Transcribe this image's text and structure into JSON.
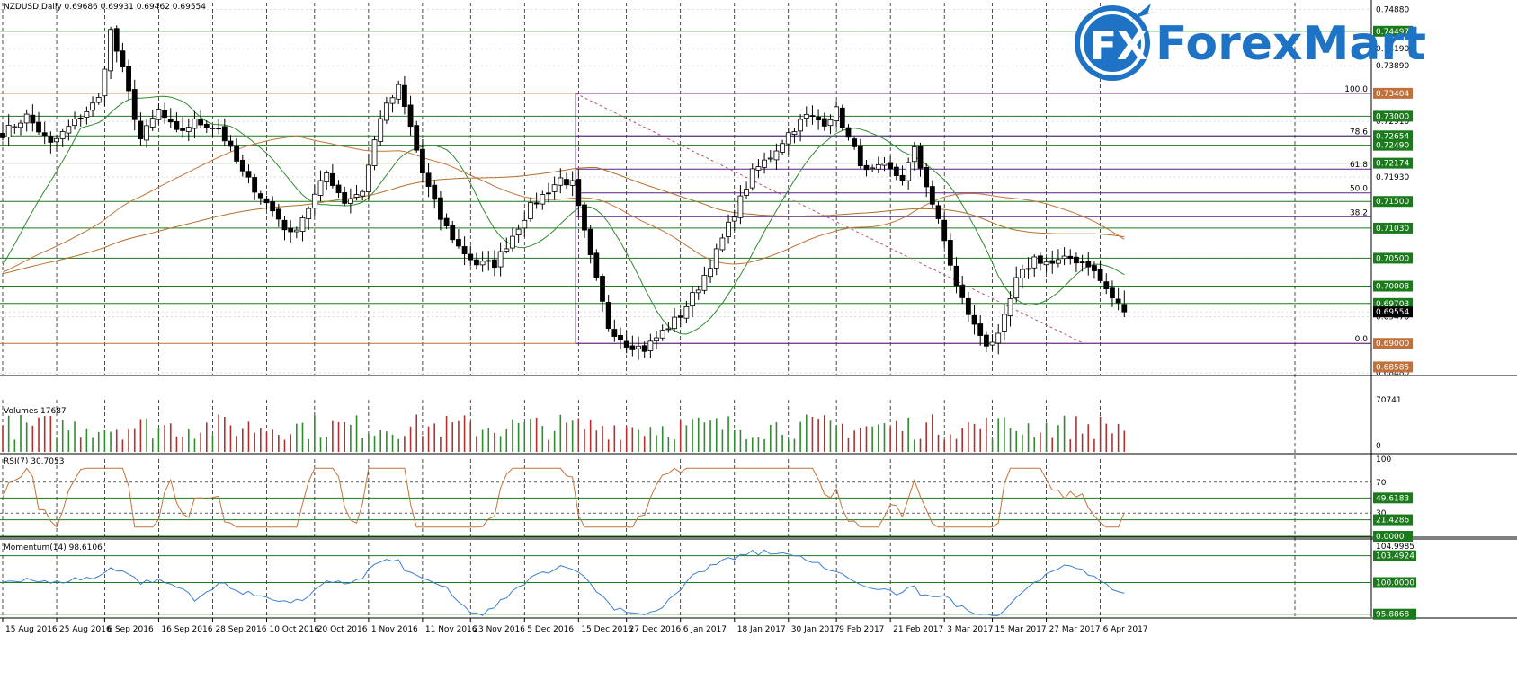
{
  "chart_data": {
    "type": "candlestick",
    "symbol_header": "NZDUSD,Daily  0.69686 0.69931 0.69462 0.69554",
    "brand_name": "ForexMart",
    "brand_logo_text": "FX",
    "price_axis": {
      "range": [
        0.6845,
        0.75
      ],
      "ticks": [
        "0.74880",
        "0.74497",
        "0.74190",
        "0.73890",
        "0.73404",
        "0.73000",
        "0.72910",
        "0.72654",
        "0.72490",
        "0.72174",
        "0.71930",
        "0.71500",
        "0.71030",
        "0.70500",
        "0.70008",
        "0.69703",
        "0.69554",
        "0.69470",
        "0.69000",
        "0.68585",
        "0.68480"
      ],
      "marked_levels": [
        {
          "value": 0.74497,
          "label": "0.74497",
          "color": "#1b7a1b"
        },
        {
          "value": 0.73404,
          "label": "0.73404",
          "color": "#c0703a"
        },
        {
          "value": 0.73,
          "label": "0.73000",
          "color": "#1b7a1b"
        },
        {
          "value": 0.72654,
          "label": "0.72654",
          "color": "#1b7a1b"
        },
        {
          "value": 0.7249,
          "label": "0.72490",
          "color": "#1b7a1b"
        },
        {
          "value": 0.72174,
          "label": "0.72174",
          "color": "#1b7a1b"
        },
        {
          "value": 0.715,
          "label": "0.71500",
          "color": "#1b7a1b"
        },
        {
          "value": 0.7103,
          "label": "0.71030",
          "color": "#1b7a1b"
        },
        {
          "value": 0.705,
          "label": "0.70500",
          "color": "#1b7a1b"
        },
        {
          "value": 0.70008,
          "label": "0.70008",
          "color": "#1b7a1b"
        },
        {
          "value": 0.69703,
          "label": "0.69703",
          "color": "#1b7a1b"
        },
        {
          "value": 0.69554,
          "label": "0.69554",
          "color": "#000000"
        },
        {
          "value": 0.69,
          "label": "0.69000",
          "color": "#c0703a"
        },
        {
          "value": 0.68585,
          "label": "0.68585",
          "color": "#c0703a"
        }
      ]
    },
    "fibonacci": {
      "color": "#5a1e8c",
      "levels": [
        {
          "label": "100.0",
          "value": 0.73404
        },
        {
          "label": "78.6",
          "value": 0.72654
        },
        {
          "label": "61.8",
          "value": 0.7207
        },
        {
          "label": "50.0",
          "value": 0.7165
        },
        {
          "label": "38.2",
          "value": 0.7123
        },
        {
          "label": "0.0",
          "value": 0.69
        }
      ]
    },
    "x_axis_labels": [
      "15 Aug 2016",
      "25 Aug 2016",
      "6 Sep 2016",
      "16 Sep 2016",
      "28 Sep 2016",
      "10 Oct 2016",
      "20 Oct 2016",
      "1 Nov 2016",
      "11 Nov 2016",
      "23 Nov 2016",
      "5 Dec 2016",
      "15 Dec 2016",
      "27 Dec 2016",
      "6 Jan 2017",
      "18 Jan 2017",
      "30 Jan 2017",
      "9 Feb 2017",
      "21 Feb 2017",
      "3 Mar 2017",
      "15 Mar 2017",
      "27 Mar 2017",
      "6 Apr 2017"
    ],
    "close_anchors": [
      [
        0,
        0.727
      ],
      [
        4,
        0.73
      ],
      [
        8,
        0.725
      ],
      [
        12,
        0.729
      ],
      [
        16,
        0.733
      ],
      [
        17,
        0.739
      ],
      [
        18,
        0.745
      ],
      [
        20,
        0.738
      ],
      [
        23,
        0.726
      ],
      [
        26,
        0.731
      ],
      [
        29,
        0.727
      ],
      [
        32,
        0.729
      ],
      [
        36,
        0.728
      ],
      [
        40,
        0.72
      ],
      [
        43,
        0.716
      ],
      [
        46,
        0.712
      ],
      [
        48,
        0.709
      ],
      [
        51,
        0.714
      ],
      [
        54,
        0.72
      ],
      [
        57,
        0.715
      ],
      [
        60,
        0.717
      ],
      [
        63,
        0.73
      ],
      [
        66,
        0.735
      ],
      [
        68,
        0.728
      ],
      [
        70,
        0.72
      ],
      [
        73,
        0.712
      ],
      [
        76,
        0.707
      ],
      [
        79,
        0.704
      ],
      [
        82,
        0.704
      ],
      [
        85,
        0.709
      ],
      [
        88,
        0.714
      ],
      [
        91,
        0.717
      ],
      [
        93,
        0.719
      ],
      [
        95,
        0.718
      ],
      [
        98,
        0.705
      ],
      [
        101,
        0.693
      ],
      [
        104,
        0.69
      ],
      [
        107,
        0.689
      ],
      [
        110,
        0.692
      ],
      [
        113,
        0.695
      ],
      [
        116,
        0.7
      ],
      [
        119,
        0.706
      ],
      [
        122,
        0.713
      ],
      [
        125,
        0.72
      ],
      [
        128,
        0.723
      ],
      [
        131,
        0.727
      ],
      [
        134,
        0.73
      ],
      [
        137,
        0.729
      ],
      [
        139,
        0.731
      ],
      [
        141,
        0.726
      ],
      [
        144,
        0.72
      ],
      [
        147,
        0.721
      ],
      [
        150,
        0.719
      ],
      [
        152,
        0.724
      ],
      [
        154,
        0.718
      ],
      [
        157,
        0.708
      ],
      [
        159,
        0.7
      ],
      [
        162,
        0.693
      ],
      [
        164,
        0.69
      ],
      [
        166,
        0.691
      ],
      [
        169,
        0.701
      ],
      [
        172,
        0.705
      ],
      [
        175,
        0.704
      ],
      [
        178,
        0.705
      ],
      [
        181,
        0.704
      ],
      [
        183,
        0.701
      ],
      [
        185,
        0.698
      ],
      [
        187,
        0.6955
      ]
    ],
    "moving_averages": [
      {
        "period": 14,
        "color": "#2e8b2e"
      },
      {
        "period": 50,
        "color": "#c4743a"
      },
      {
        "period": 100,
        "color": "#b26f2a"
      }
    ],
    "volumes": {
      "label": "Volumes 17687",
      "max_tick": "70741",
      "min_tick": "0"
    },
    "rsi": {
      "label": "RSI(7) 30.7053",
      "range": [
        0,
        100
      ],
      "ticks": [
        "100",
        "70",
        "30",
        "0"
      ],
      "current": 30.7053,
      "levels": [
        {
          "value": 49.6183,
          "label": "49.6183",
          "color": "#1b7a1b"
        },
        {
          "value": 21.4286,
          "label": "21.4286",
          "color": "#1b7a1b"
        },
        {
          "value": 0,
          "label": "0.0000",
          "color": "#1b7a1b"
        }
      ],
      "line_color": "#c4743a"
    },
    "momentum": {
      "label": "Momentum(14) 98.6106",
      "range": [
        95.5,
        105.2
      ],
      "top_tick": "104.9985",
      "current": 98.6106,
      "levels": [
        {
          "value": 103.4924,
          "label": "103.4924",
          "color": "#1b7a1b"
        },
        {
          "value": 100.0,
          "label": "100.0000",
          "color": "#1b7a1b"
        },
        {
          "value": 95.8868,
          "label": "95.8868",
          "color": "#1b7a1b"
        }
      ],
      "line_color": "#3a7fd0"
    },
    "colors": {
      "bull_candle": "#ffffff",
      "bear_candle": "#000000",
      "grid": "#c8c8c8",
      "vol_up": "#2e8b2e",
      "vol_down": "#b03030",
      "dashed_trend": "#c0507a"
    }
  }
}
